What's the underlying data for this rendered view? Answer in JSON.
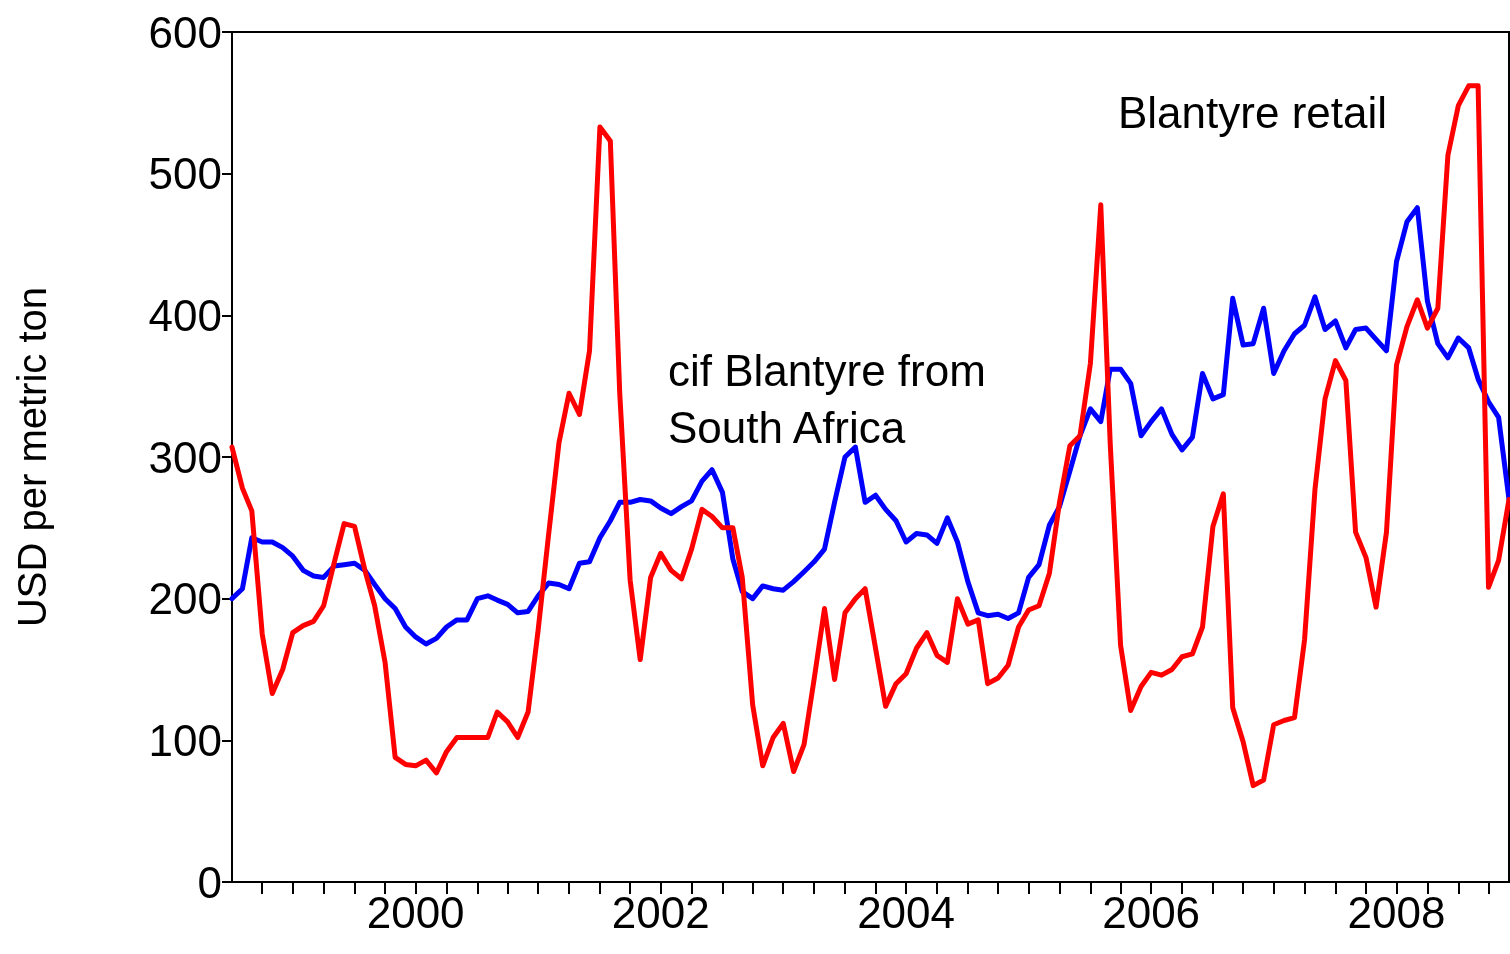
{
  "chart_data": {
    "type": "line",
    "ylabel": "USD per metric ton",
    "legend": false,
    "grid": false,
    "marker": "none",
    "line_style": "solid",
    "xlim": [
      "1999-01",
      "2009-06"
    ],
    "ylim": [
      0,
      600
    ],
    "yticks": [
      0,
      100,
      200,
      300,
      400,
      500,
      600
    ],
    "xticks": [
      {
        "value": "1999-04",
        "label": null
      },
      {
        "value": "1999-07",
        "label": null
      },
      {
        "value": "1999-10",
        "label": null
      },
      {
        "value": "2000-01",
        "label": null
      },
      {
        "value": "2000-04",
        "label": null
      },
      {
        "value": "2000-07",
        "label": "2000"
      },
      {
        "value": "2000-10",
        "label": null
      },
      {
        "value": "2001-01",
        "label": null
      },
      {
        "value": "2001-04",
        "label": null
      },
      {
        "value": "2001-07",
        "label": null
      },
      {
        "value": "2001-10",
        "label": null
      },
      {
        "value": "2002-01",
        "label": null
      },
      {
        "value": "2002-04",
        "label": null
      },
      {
        "value": "2002-07",
        "label": "2002"
      },
      {
        "value": "2002-10",
        "label": null
      },
      {
        "value": "2003-01",
        "label": null
      },
      {
        "value": "2003-04",
        "label": null
      },
      {
        "value": "2003-07",
        "label": null
      },
      {
        "value": "2003-10",
        "label": null
      },
      {
        "value": "2004-01",
        "label": null
      },
      {
        "value": "2004-04",
        "label": null
      },
      {
        "value": "2004-07",
        "label": "2004"
      },
      {
        "value": "2004-10",
        "label": null
      },
      {
        "value": "2005-01",
        "label": null
      },
      {
        "value": "2005-04",
        "label": null
      },
      {
        "value": "2005-07",
        "label": null
      },
      {
        "value": "2005-10",
        "label": null
      },
      {
        "value": "2006-01",
        "label": null
      },
      {
        "value": "2006-04",
        "label": null
      },
      {
        "value": "2006-07",
        "label": "2006"
      },
      {
        "value": "2006-10",
        "label": null
      },
      {
        "value": "2007-01",
        "label": null
      },
      {
        "value": "2007-04",
        "label": null
      },
      {
        "value": "2007-07",
        "label": null
      },
      {
        "value": "2007-10",
        "label": null
      },
      {
        "value": "2008-01",
        "label": null
      },
      {
        "value": "2008-04",
        "label": null
      },
      {
        "value": "2008-07",
        "label": "2008"
      },
      {
        "value": "2008-10",
        "label": null
      },
      {
        "value": "2009-01",
        "label": null
      },
      {
        "value": "2009-04",
        "label": null
      }
    ],
    "x": [
      "1999-01",
      "1999-02",
      "1999-03",
      "1999-04",
      "1999-05",
      "1999-06",
      "1999-07",
      "1999-08",
      "1999-09",
      "1999-10",
      "1999-11",
      "1999-12",
      "2000-01",
      "2000-02",
      "2000-03",
      "2000-04",
      "2000-05",
      "2000-06",
      "2000-07",
      "2000-08",
      "2000-09",
      "2000-10",
      "2000-11",
      "2000-12",
      "2001-01",
      "2001-02",
      "2001-03",
      "2001-04",
      "2001-05",
      "2001-06",
      "2001-07",
      "2001-08",
      "2001-09",
      "2001-10",
      "2001-11",
      "2001-12",
      "2002-01",
      "2002-02",
      "2002-03",
      "2002-04",
      "2002-05",
      "2002-06",
      "2002-07",
      "2002-08",
      "2002-09",
      "2002-10",
      "2002-11",
      "2002-12",
      "2003-01",
      "2003-02",
      "2003-03",
      "2003-04",
      "2003-05",
      "2003-06",
      "2003-07",
      "2003-08",
      "2003-09",
      "2003-10",
      "2003-11",
      "2003-12",
      "2004-01",
      "2004-02",
      "2004-03",
      "2004-04",
      "2004-05",
      "2004-06",
      "2004-07",
      "2004-08",
      "2004-09",
      "2004-10",
      "2004-11",
      "2004-12",
      "2005-01",
      "2005-02",
      "2005-03",
      "2005-04",
      "2005-05",
      "2005-06",
      "2005-07",
      "2005-08",
      "2005-09",
      "2005-10",
      "2005-11",
      "2005-12",
      "2006-01",
      "2006-02",
      "2006-03",
      "2006-04",
      "2006-05",
      "2006-06",
      "2006-07",
      "2006-08",
      "2006-09",
      "2006-10",
      "2006-11",
      "2006-12",
      "2007-01",
      "2007-02",
      "2007-03",
      "2007-04",
      "2007-05",
      "2007-06",
      "2007-07",
      "2007-08",
      "2007-09",
      "2007-10",
      "2007-11",
      "2007-12",
      "2008-01",
      "2008-02",
      "2008-03",
      "2008-04",
      "2008-05",
      "2008-06",
      "2008-07",
      "2008-08",
      "2008-09",
      "2008-10",
      "2008-11",
      "2008-12",
      "2009-01",
      "2009-02",
      "2009-03",
      "2009-04",
      "2009-05",
      "2009-06"
    ],
    "series": [
      {
        "name": "cif Blantyre from South Africa",
        "color": "#0000ff",
        "values": [
          200,
          207,
          243,
          240,
          240,
          236,
          230,
          220,
          216,
          215,
          223,
          224,
          225,
          220,
          210,
          200,
          193,
          180,
          173,
          168,
          172,
          180,
          185,
          185,
          200,
          202,
          199,
          196,
          190,
          191,
          202,
          211,
          210,
          207,
          225,
          226,
          243,
          255,
          268,
          268,
          270,
          269,
          264,
          260,
          265,
          269,
          283,
          291,
          275,
          228,
          205,
          200,
          209,
          207,
          206,
          212,
          219,
          226,
          235,
          268,
          300,
          307,
          268,
          273,
          263,
          255,
          240,
          246,
          245,
          239,
          257,
          240,
          212,
          190,
          188,
          189,
          186,
          190,
          215,
          224,
          252,
          265,
          290,
          315,
          334,
          325,
          362,
          362,
          352,
          315,
          325,
          334,
          316,
          305,
          314,
          359,
          341,
          344,
          412,
          379,
          380,
          405,
          359,
          375,
          387,
          393,
          413,
          390,
          396,
          377,
          390,
          391,
          383,
          375,
          438,
          466,
          476,
          410,
          380,
          370,
          384,
          377,
          355,
          339,
          328,
          270
        ]
      },
      {
        "name": "Blantyre retail",
        "color": "#ff0000",
        "values": [
          307,
          278,
          262,
          175,
          133,
          150,
          176,
          181,
          184,
          195,
          225,
          253,
          251,
          220,
          195,
          155,
          88,
          83,
          82,
          86,
          77,
          92,
          102,
          102,
          102,
          102,
          120,
          113,
          102,
          120,
          178,
          245,
          310,
          345,
          330,
          375,
          533,
          523,
          345,
          213,
          157,
          215,
          232,
          220,
          214,
          235,
          263,
          258,
          250,
          250,
          215,
          125,
          82,
          102,
          112,
          78,
          97,
          143,
          193,
          143,
          190,
          200,
          207,
          165,
          124,
          140,
          147,
          165,
          176,
          160,
          155,
          200,
          182,
          185,
          140,
          144,
          153,
          180,
          192,
          195,
          218,
          268,
          308,
          315,
          366,
          478,
          310,
          167,
          121,
          138,
          148,
          146,
          150,
          159,
          161,
          180,
          251,
          274,
          123,
          99,
          68,
          72,
          111,
          114,
          116,
          171,
          277,
          341,
          368,
          354,
          247,
          229,
          194,
          247,
          365,
          392,
          411,
          391,
          405,
          513,
          548,
          562,
          562,
          208,
          227,
          270
        ]
      }
    ]
  }
}
